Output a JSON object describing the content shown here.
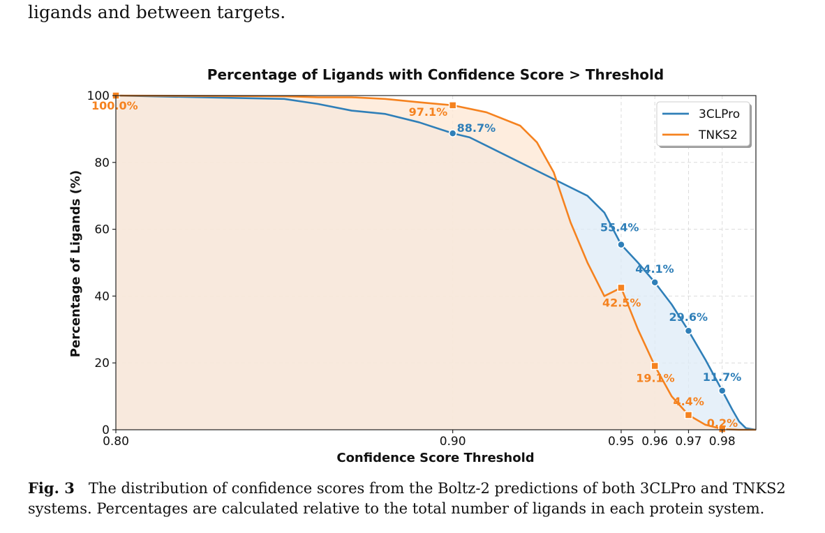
{
  "page": {
    "intro_text": "ligands and between targets.",
    "caption_label": "Fig. 3",
    "caption_line1": "The distribution of confidence scores from the Boltz-2 predictions of both 3CLPro and TNKS2",
    "caption_line2": "systems. Percentages are calculated relative to the total number of ligands in each protein system."
  },
  "chart_data": {
    "type": "area",
    "title": "Percentage of Ligands with Confidence Score > Threshold",
    "xlabel": "Confidence Score Threshold",
    "ylabel": "Percentage of Ligands (%)",
    "xlim": [
      0.8,
      0.99
    ],
    "ylim": [
      0,
      100
    ],
    "x_ticks": [
      0.8,
      0.9,
      0.95,
      0.96,
      0.97,
      0.98
    ],
    "x_tick_labels": [
      "0.80",
      "0.90",
      "0.95",
      "0.96",
      "0.97",
      "0.98"
    ],
    "y_ticks": [
      0,
      20,
      40,
      60,
      80,
      100
    ],
    "y_tick_labels": [
      "0",
      "20",
      "40",
      "60",
      "80",
      "100"
    ],
    "grid": true,
    "legend_position": "top-right",
    "series": [
      {
        "name": "3CLPro",
        "color": "#2f7fb8",
        "fill": "#deebf7",
        "x": [
          0.8,
          0.85,
          0.86,
          0.87,
          0.88,
          0.89,
          0.9,
          0.905,
          0.91,
          0.92,
          0.93,
          0.94,
          0.945,
          0.95,
          0.955,
          0.96,
          0.965,
          0.97,
          0.975,
          0.98,
          0.983,
          0.985,
          0.987,
          0.99
        ],
        "y": [
          100,
          99.0,
          97.5,
          95.5,
          94.5,
          92.0,
          88.7,
          87.5,
          85.0,
          80.0,
          75.0,
          70.0,
          65.0,
          55.4,
          50.0,
          44.1,
          37.5,
          29.6,
          21.0,
          11.7,
          6.0,
          2.5,
          0.5,
          0
        ],
        "markers_x": [
          0.9,
          0.95,
          0.96,
          0.97,
          0.98
        ],
        "markers_y": [
          88.7,
          55.4,
          44.1,
          29.6,
          11.7
        ],
        "marker_labels": [
          "88.7%",
          "55.4%",
          "44.1%",
          "29.6%",
          "11.7%"
        ]
      },
      {
        "name": "TNKS2",
        "color": "#f5821f",
        "fill": "#fde7d3",
        "x": [
          0.8,
          0.85,
          0.86,
          0.87,
          0.88,
          0.89,
          0.9,
          0.91,
          0.92,
          0.925,
          0.93,
          0.935,
          0.94,
          0.945,
          0.95,
          0.955,
          0.96,
          0.965,
          0.97,
          0.975,
          0.98,
          0.985,
          0.99
        ],
        "y": [
          100,
          99.8,
          99.5,
          99.5,
          99.0,
          98.0,
          97.1,
          95.0,
          91.0,
          86.0,
          77.0,
          62.0,
          50.0,
          40.0,
          42.5,
          30.0,
          19.1,
          10.0,
          4.4,
          1.5,
          0.2,
          0,
          0
        ],
        "markers_x": [
          0.8,
          0.9,
          0.95,
          0.96,
          0.97,
          0.98
        ],
        "markers_y": [
          100,
          97.1,
          42.5,
          19.1,
          4.4,
          0.2
        ],
        "marker_labels": [
          "100.0%",
          "97.1%",
          "42.5%",
          "19.1%",
          "4.4%",
          "0.2%"
        ]
      }
    ]
  }
}
